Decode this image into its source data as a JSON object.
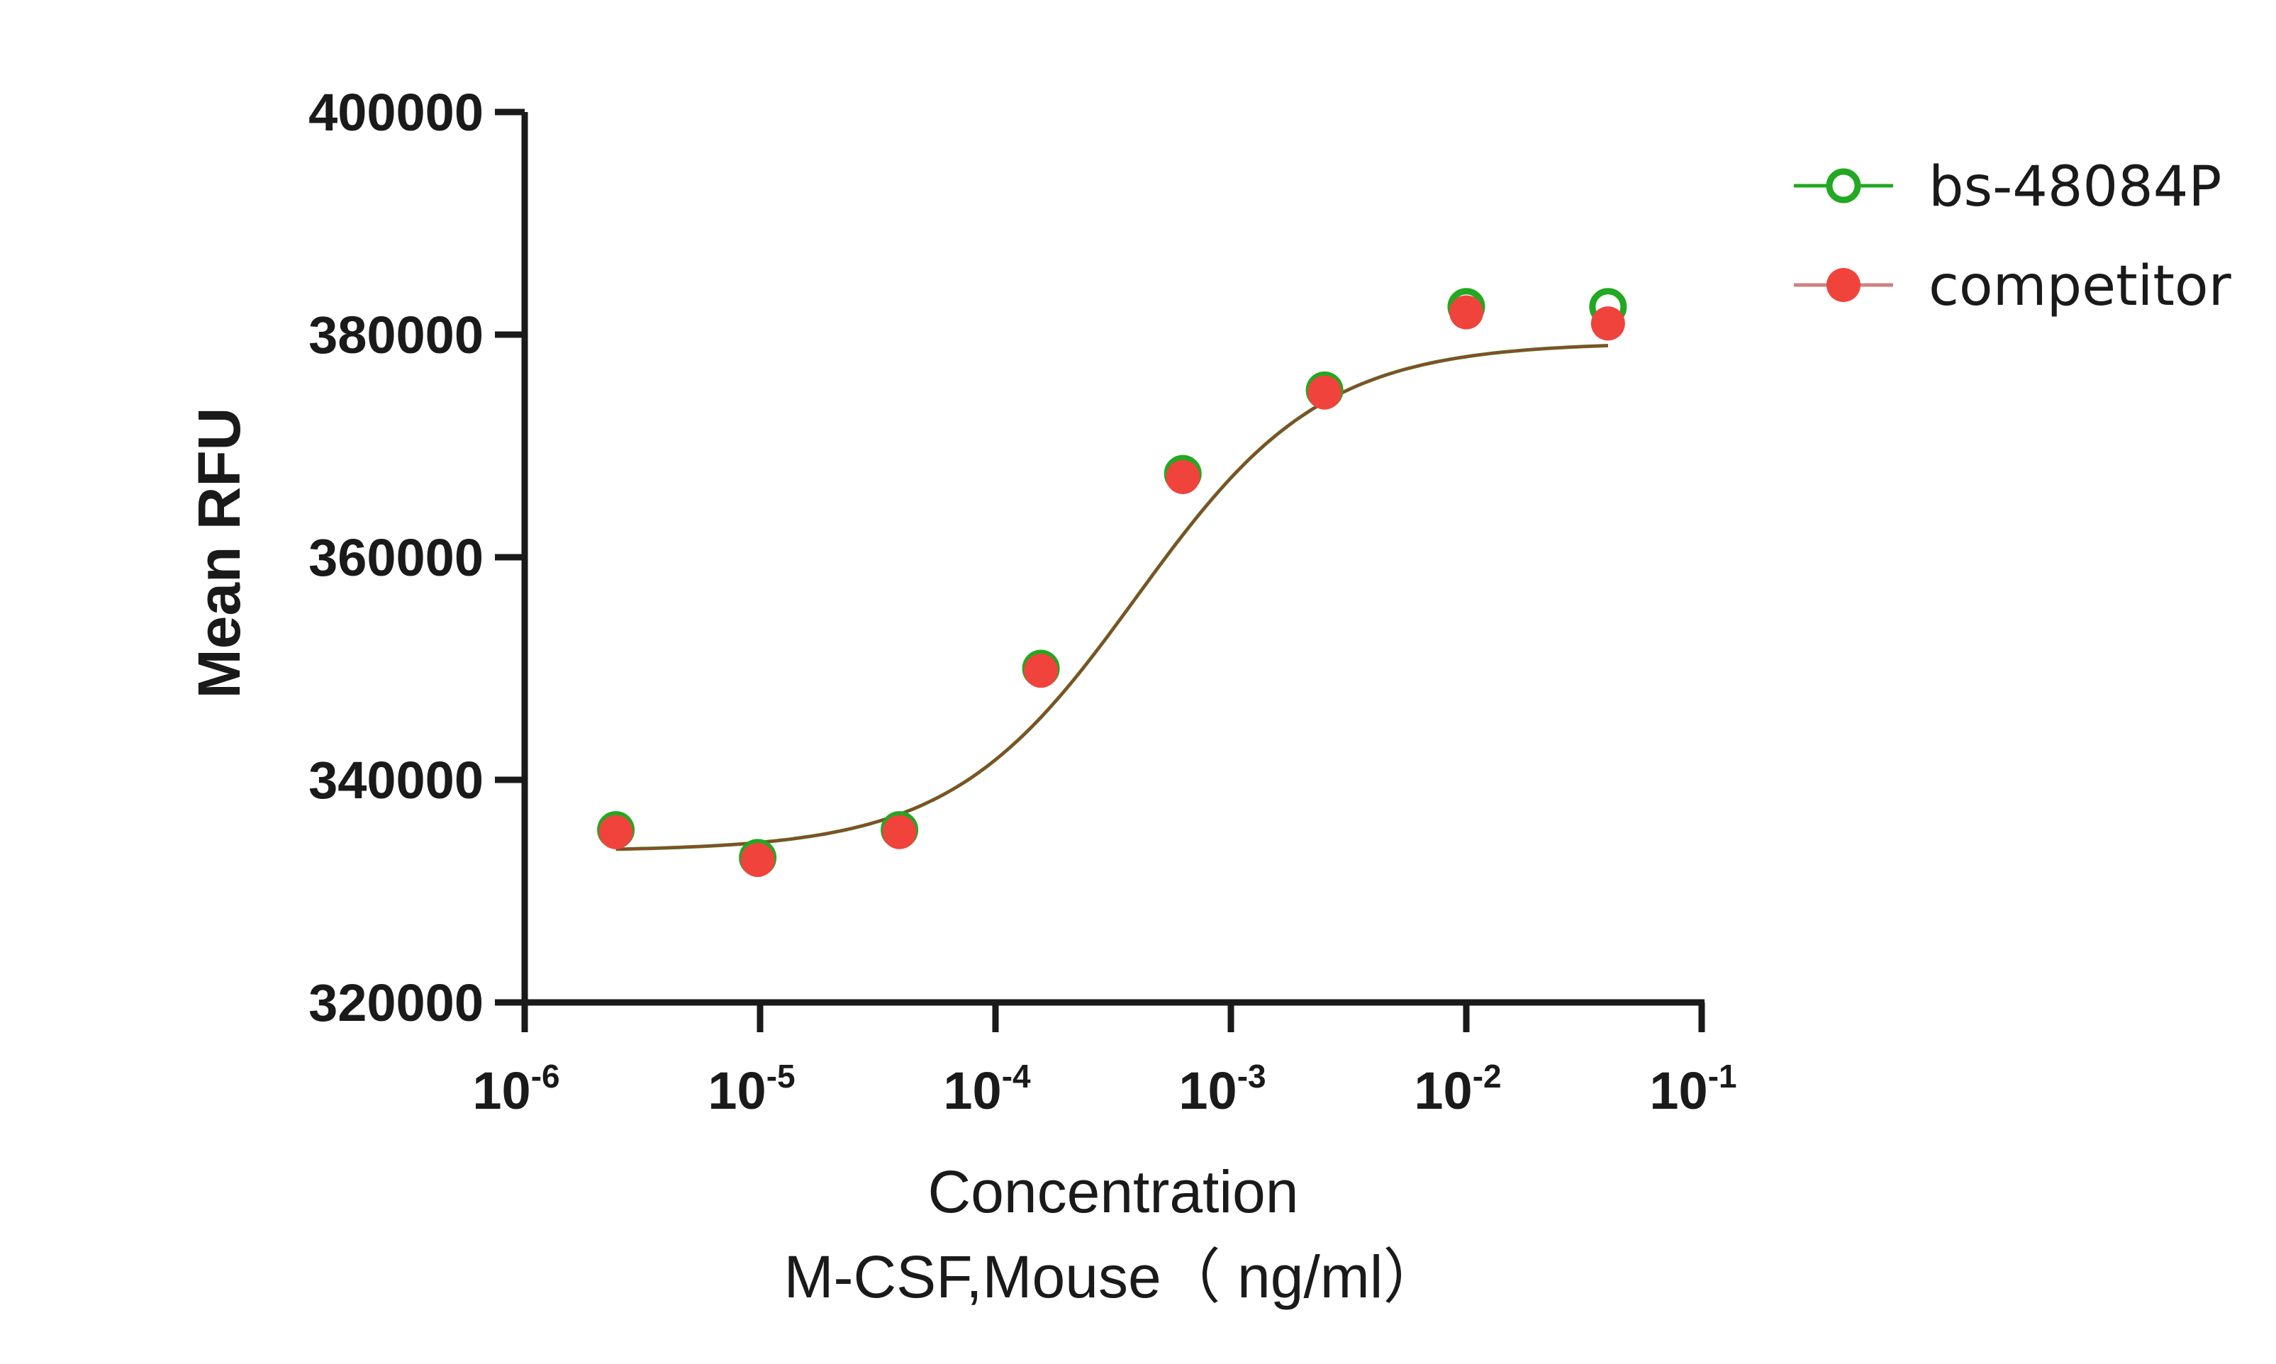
{
  "chart_data": {
    "type": "scatter",
    "ylabel": "Mean RFU",
    "xlabel_lines": [
      "Concentration",
      "M-CSF,Mouse（ ng/ml）"
    ],
    "x_scale": "log",
    "xlim": [
      1e-06,
      0.1
    ],
    "ylim": [
      320000,
      400000
    ],
    "x_ticks": [
      {
        "value": 1e-06,
        "base": "10",
        "exp": "-6"
      },
      {
        "value": 1e-05,
        "base": "10",
        "exp": "-5"
      },
      {
        "value": 0.0001,
        "base": "10",
        "exp": "-4"
      },
      {
        "value": 0.001,
        "base": "10",
        "exp": "-3"
      },
      {
        "value": 0.01,
        "base": "10",
        "exp": "-2"
      },
      {
        "value": 0.1,
        "base": "10",
        "exp": "-1"
      }
    ],
    "y_ticks": [
      320000,
      340000,
      360000,
      380000,
      400000
    ],
    "grid": false,
    "legend_position": "top-right",
    "series": [
      {
        "name": "bs-48084P",
        "color": "#22a822",
        "marker": "open-circle",
        "x": [
          2.44e-06,
          9.77e-06,
          3.91e-05,
          0.000156,
          0.000625,
          0.0025,
          0.01,
          0.04
        ],
        "y": [
          335500,
          333000,
          335500,
          350000,
          367500,
          375000,
          382500,
          382500
        ],
        "fit": {
          "bottom": 333600,
          "top": 379300,
          "logEC50": -3.4,
          "hill": 1.1
        }
      },
      {
        "name": "competitor",
        "color": "#f0433c",
        "marker": "filled-circle",
        "x": [
          2.44e-06,
          9.77e-06,
          3.91e-05,
          0.000156,
          0.000625,
          0.0025,
          0.01,
          0.04
        ],
        "y": [
          335300,
          332800,
          335300,
          349800,
          367200,
          374800,
          382000,
          381000
        ],
        "fit": {
          "bottom": 333600,
          "top": 379300,
          "logEC50": -3.4,
          "hill": 1.1
        }
      }
    ]
  }
}
